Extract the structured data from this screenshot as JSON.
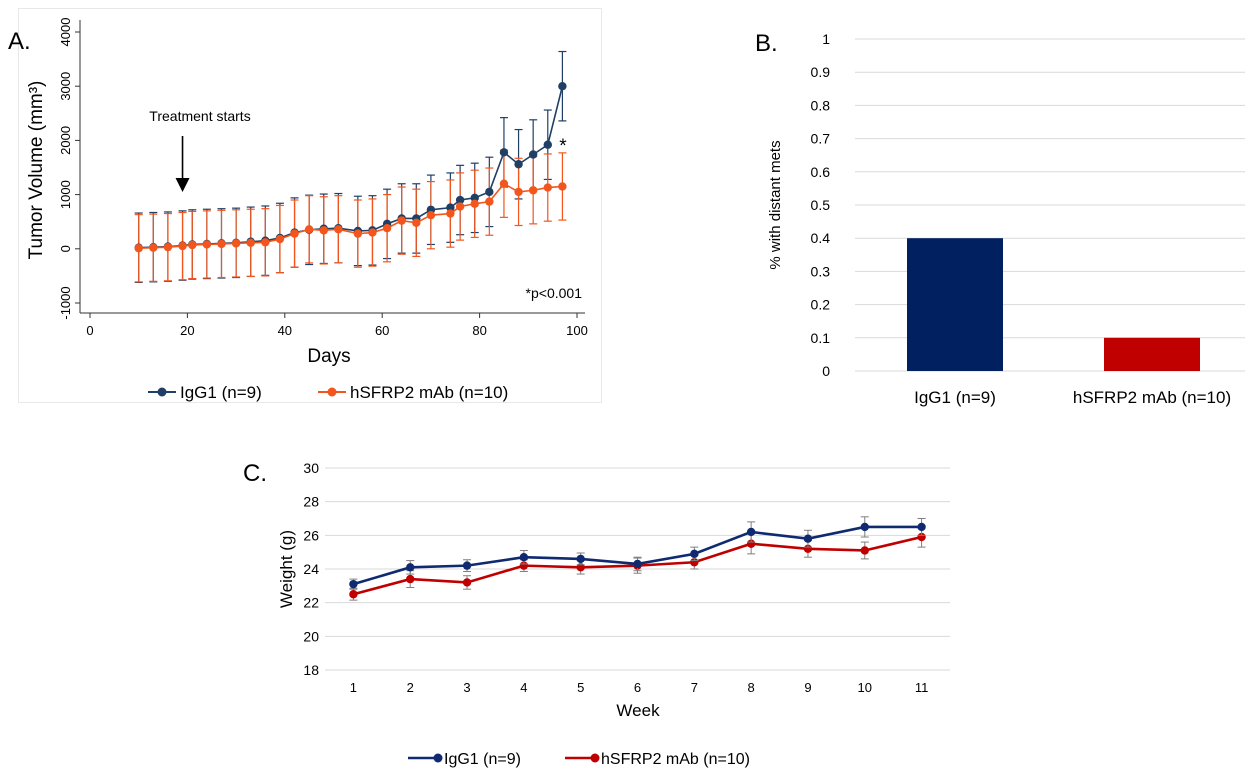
{
  "panels": {
    "a": "A.",
    "b": "B.",
    "c": "C."
  },
  "colors": {
    "igg1": "#1f3f66",
    "hsfrp2_a": "#f2561d",
    "bar_igg1": "#002060",
    "bar_hsfrp2": "#c00000",
    "line_igg1": "#0f2a70",
    "line_hsfrp2": "#c00000"
  },
  "chart_data": [
    {
      "type": "line",
      "panel": "A.",
      "xlabel": "Days",
      "ylabel": "Tumor Volume (mm³)",
      "xlim": [
        0,
        100
      ],
      "ylim": [
        -1000,
        4000
      ],
      "x_ticks": [
        0,
        20,
        40,
        60,
        80,
        100
      ],
      "y_ticks": [
        -1000,
        0,
        1000,
        2000,
        3000,
        4000
      ],
      "grid": false,
      "legend_position": "bottom",
      "annotations": {
        "treatment": "Treatment starts",
        "treatment_day": 19,
        "star": "*",
        "pvalue": "*p<0.001"
      },
      "series": [
        {
          "name": "IgG1 (n=9)",
          "x": [
            10,
            13,
            16,
            19,
            21,
            24,
            27,
            30,
            33,
            36,
            39,
            42,
            45,
            48,
            51,
            55,
            58,
            61,
            64,
            67,
            70,
            74,
            76,
            79,
            82,
            85,
            88,
            91,
            94,
            97
          ],
          "y": [
            20,
            30,
            40,
            60,
            80,
            90,
            100,
            110,
            130,
            150,
            200,
            300,
            350,
            370,
            380,
            330,
            340,
            460,
            560,
            560,
            720,
            760,
            900,
            940,
            1050,
            1780,
            1560,
            1740,
            1920,
            3000
          ],
          "err": [
            640,
            640,
            640,
            640,
            640,
            640,
            640,
            640,
            640,
            640,
            640,
            640,
            640,
            640,
            640,
            640,
            640,
            640,
            640,
            640,
            640,
            640,
            640,
            640,
            640,
            640,
            640,
            640,
            640,
            640
          ]
        },
        {
          "name": "hSFRP2 mAb (n=10)",
          "x": [
            10,
            13,
            16,
            19,
            21,
            24,
            27,
            30,
            33,
            36,
            39,
            42,
            45,
            48,
            51,
            55,
            58,
            61,
            64,
            67,
            70,
            74,
            76,
            79,
            82,
            85,
            88,
            91,
            94,
            97
          ],
          "y": [
            10,
            20,
            30,
            50,
            70,
            80,
            90,
            100,
            110,
            120,
            180,
            280,
            360,
            340,
            360,
            280,
            300,
            380,
            520,
            480,
            620,
            650,
            780,
            830,
            870,
            1200,
            1050,
            1080,
            1130,
            1150
          ],
          "err": [
            620,
            620,
            620,
            620,
            620,
            620,
            620,
            620,
            620,
            620,
            620,
            620,
            620,
            620,
            620,
            620,
            620,
            620,
            620,
            620,
            620,
            620,
            620,
            620,
            620,
            620,
            620,
            620,
            620,
            620
          ]
        }
      ]
    },
    {
      "type": "bar",
      "panel": "B.",
      "ylabel": "% with distant mets",
      "categories": [
        "IgG1 (n=9)",
        "hSFRP2 mAb (n=10)"
      ],
      "values": [
        0.4,
        0.1
      ],
      "ylim": [
        0,
        1
      ],
      "y_ticks": [
        "0",
        "0.1",
        "0.2",
        "0.3",
        "0.4",
        "0.5",
        "0.6",
        "0.7",
        "0.8",
        "0.9",
        "1"
      ],
      "grid": true
    },
    {
      "type": "line",
      "panel": "C.",
      "xlabel": "Week",
      "ylabel": "Weight (g)",
      "categories": [
        "1",
        "2",
        "3",
        "4",
        "5",
        "6",
        "7",
        "8",
        "9",
        "10",
        "11"
      ],
      "ylim": [
        18,
        30
      ],
      "y_ticks": [
        18,
        20,
        22,
        24,
        26,
        28,
        30
      ],
      "grid": true,
      "legend_position": "bottom",
      "series": [
        {
          "name": "IgG1 (n=9)",
          "values": [
            23.1,
            24.1,
            24.2,
            24.7,
            24.6,
            24.3,
            24.9,
            26.2,
            25.8,
            26.5,
            26.5
          ],
          "err": [
            0.3,
            0.4,
            0.35,
            0.4,
            0.35,
            0.4,
            0.4,
            0.6,
            0.5,
            0.6,
            0.5
          ]
        },
        {
          "name": "hSFRP2 mAb (n=10)",
          "values": [
            22.5,
            23.4,
            23.2,
            24.2,
            24.1,
            24.2,
            24.4,
            25.5,
            25.2,
            25.1,
            25.9
          ],
          "err": [
            0.35,
            0.5,
            0.4,
            0.35,
            0.4,
            0.45,
            0.4,
            0.6,
            0.5,
            0.5,
            0.6
          ]
        }
      ]
    }
  ]
}
